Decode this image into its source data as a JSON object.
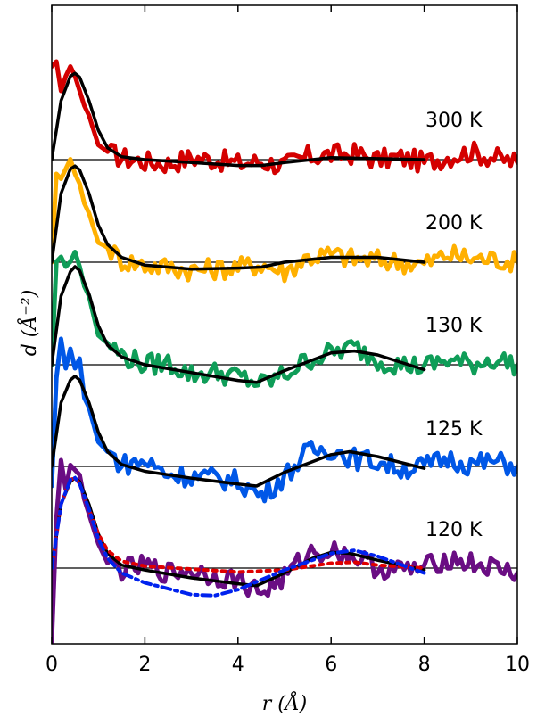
{
  "chart_data": {
    "type": "line",
    "xlabel": "r (Å)",
    "ylabel": "d (Å⁻²)",
    "xlim": [
      0,
      10
    ],
    "x_ticks": [
      "0",
      "2",
      "4",
      "6",
      "8",
      "10"
    ],
    "y_ticks_shown": false,
    "grid": false,
    "legend": "none",
    "stacked_offset_curves": true,
    "series": [
      {
        "name": "300 K",
        "color": "#d40000",
        "fit_color": "#000000",
        "data_x": [
          0.0,
          0.1,
          0.2,
          0.3,
          0.4,
          0.5,
          0.6,
          0.7,
          0.8,
          1.0,
          1.2,
          1.5,
          2.0,
          2.5,
          3.0,
          3.5,
          4.0,
          4.5,
          5.0,
          5.5,
          6.0,
          6.5,
          7.0,
          7.5,
          8.0,
          8.5,
          9.0,
          9.5,
          10.0
        ],
        "data_y": [
          0.95,
          1.0,
          0.7,
          0.85,
          0.95,
          0.85,
          0.7,
          0.55,
          0.45,
          0.15,
          0.08,
          0.02,
          -0.02,
          -0.04,
          0.02,
          0.0,
          -0.04,
          -0.02,
          -0.06,
          0.03,
          0.05,
          0.06,
          0.0,
          0.02,
          -0.03,
          0.03,
          0.08,
          0.02,
          -0.03
        ],
        "fit_x": [
          0.0,
          0.2,
          0.4,
          0.5,
          0.6,
          0.8,
          1.0,
          1.2,
          1.5,
          2.0,
          3.0,
          4.0,
          4.5,
          5.0,
          6.0,
          7.0,
          8.0
        ],
        "fit_y": [
          0.0,
          0.6,
          0.85,
          0.88,
          0.84,
          0.6,
          0.3,
          0.12,
          0.03,
          0.0,
          -0.03,
          -0.06,
          -0.06,
          -0.03,
          0.02,
          0.01,
          0.0
        ]
      },
      {
        "name": "200 K",
        "color": "#ffb000",
        "fit_color": "#000000",
        "data_x": [
          0.0,
          0.1,
          0.2,
          0.3,
          0.4,
          0.5,
          0.6,
          0.7,
          0.8,
          1.0,
          1.2,
          1.5,
          2.0,
          2.5,
          3.0,
          3.5,
          4.0,
          4.5,
          5.0,
          5.5,
          6.0,
          6.5,
          7.0,
          7.5,
          8.0,
          8.5,
          9.0,
          9.5,
          10.0
        ],
        "data_y": [
          0.0,
          0.9,
          0.85,
          0.95,
          1.05,
          0.9,
          0.8,
          0.6,
          0.5,
          0.2,
          0.15,
          0.02,
          -0.03,
          -0.05,
          -0.08,
          -0.07,
          -0.05,
          -0.02,
          -0.1,
          0.05,
          0.08,
          0.03,
          0.02,
          0.0,
          -0.02,
          0.08,
          0.04,
          0.03,
          0.0
        ],
        "fit_x": [
          0.0,
          0.2,
          0.4,
          0.5,
          0.6,
          0.8,
          1.0,
          1.2,
          1.5,
          2.0,
          3.0,
          4.0,
          4.5,
          5.0,
          6.0,
          7.0,
          8.0
        ],
        "fit_y": [
          0.0,
          0.7,
          0.95,
          0.98,
          0.94,
          0.7,
          0.38,
          0.18,
          0.05,
          -0.03,
          -0.07,
          -0.06,
          -0.05,
          0.0,
          0.05,
          0.05,
          0.0
        ]
      },
      {
        "name": "130 K",
        "color": "#0f9d58",
        "fit_color": "#000000",
        "data_x": [
          0.0,
          0.1,
          0.2,
          0.3,
          0.4,
          0.5,
          0.6,
          0.7,
          0.8,
          1.0,
          1.2,
          1.5,
          2.0,
          2.5,
          3.0,
          3.5,
          4.0,
          4.5,
          5.0,
          5.5,
          6.0,
          6.5,
          7.0,
          7.5,
          8.0,
          8.5,
          9.0,
          9.5,
          10.0
        ],
        "data_y": [
          0.0,
          1.05,
          1.1,
          1.0,
          1.05,
          1.15,
          1.0,
          0.8,
          0.7,
          0.3,
          0.22,
          0.1,
          0.0,
          0.02,
          -0.1,
          -0.08,
          -0.12,
          -0.2,
          -0.1,
          0.05,
          0.12,
          0.18,
          0.05,
          0.0,
          -0.02,
          0.05,
          0.0,
          0.06,
          0.0
        ],
        "fit_x": [
          0.0,
          0.2,
          0.4,
          0.5,
          0.6,
          0.8,
          1.0,
          1.2,
          1.5,
          2.0,
          3.0,
          4.0,
          4.4,
          5.0,
          6.0,
          6.5,
          7.0,
          8.0
        ],
        "fit_y": [
          0.0,
          0.7,
          0.95,
          1.0,
          0.96,
          0.72,
          0.4,
          0.2,
          0.08,
          0.0,
          -0.08,
          -0.16,
          -0.18,
          -0.06,
          0.12,
          0.14,
          0.1,
          -0.05
        ]
      },
      {
        "name": "125 K",
        "color": "#0057e7",
        "fit_color": "#000000",
        "data_x": [
          0.0,
          0.1,
          0.2,
          0.3,
          0.4,
          0.5,
          0.6,
          0.7,
          0.8,
          1.0,
          1.2,
          1.5,
          2.0,
          2.5,
          3.0,
          3.5,
          4.0,
          4.5,
          5.0,
          5.5,
          6.0,
          6.5,
          7.0,
          7.5,
          8.0,
          8.5,
          9.0,
          9.5,
          10.0
        ],
        "data_y": [
          -0.2,
          0.9,
          1.3,
          1.0,
          1.2,
          1.0,
          1.1,
          0.7,
          0.6,
          0.25,
          0.15,
          0.02,
          0.05,
          -0.08,
          -0.1,
          -0.12,
          -0.15,
          -0.3,
          -0.1,
          0.15,
          0.18,
          0.08,
          0.05,
          -0.02,
          0.0,
          0.08,
          0.02,
          0.05,
          0.0
        ],
        "fit_x": [
          0.0,
          0.2,
          0.4,
          0.5,
          0.6,
          0.8,
          1.0,
          1.2,
          1.5,
          2.0,
          3.0,
          4.0,
          4.4,
          5.0,
          6.0,
          6.4,
          7.0,
          8.0
        ],
        "fit_y": [
          0.0,
          0.65,
          0.88,
          0.92,
          0.88,
          0.65,
          0.35,
          0.15,
          0.02,
          -0.05,
          -0.12,
          -0.18,
          -0.2,
          -0.06,
          0.12,
          0.15,
          0.1,
          -0.02
        ]
      },
      {
        "name": "120 K",
        "color": "#6a0d83",
        "fit_color": "#000000",
        "data_x": [
          0.0,
          0.1,
          0.2,
          0.3,
          0.4,
          0.5,
          0.6,
          0.7,
          0.8,
          1.0,
          1.2,
          1.5,
          2.0,
          2.5,
          3.0,
          3.5,
          4.0,
          4.5,
          5.0,
          5.5,
          6.0,
          6.5,
          7.0,
          7.5,
          8.0,
          8.5,
          9.0,
          9.5,
          10.0
        ],
        "data_y": [
          -0.75,
          0.5,
          1.1,
          0.8,
          1.05,
          1.0,
          0.95,
          0.7,
          0.55,
          0.25,
          0.05,
          -0.02,
          0.02,
          -0.05,
          -0.02,
          -0.08,
          -0.12,
          -0.25,
          -0.1,
          0.15,
          0.18,
          0.12,
          0.0,
          -0.02,
          0.0,
          0.1,
          0.05,
          0.0,
          -0.05
        ],
        "fit_x": [
          0.0,
          0.2,
          0.4,
          0.5,
          0.6,
          0.8,
          1.0,
          1.2,
          1.5,
          2.0,
          3.0,
          4.0,
          4.4,
          5.0,
          5.6,
          6.0,
          6.4,
          7.0,
          8.0
        ],
        "fit_y": [
          0.0,
          0.65,
          0.88,
          0.92,
          0.88,
          0.65,
          0.35,
          0.15,
          0.03,
          -0.02,
          -0.1,
          -0.16,
          -0.18,
          -0.05,
          0.1,
          0.16,
          0.15,
          0.08,
          -0.02
        ],
        "extra_curves": [
          {
            "color": "#e00000",
            "style": "dotted",
            "x": [
              0.0,
              0.2,
              0.4,
              0.5,
              0.6,
              0.8,
              1.0,
              1.2,
              1.5,
              2.0,
              3.0,
              4.0,
              5.0,
              6.0,
              6.5,
              7.0,
              8.0
            ],
            "y": [
              0.0,
              0.65,
              0.9,
              0.92,
              0.86,
              0.6,
              0.35,
              0.18,
              0.07,
              0.02,
              -0.01,
              -0.04,
              -0.02,
              0.05,
              0.06,
              0.03,
              0.0
            ]
          },
          {
            "color": "#0022ee",
            "style": "dashdot",
            "x": [
              0.0,
              0.2,
              0.4,
              0.5,
              0.6,
              0.8,
              1.0,
              1.2,
              1.5,
              2.0,
              3.0,
              3.5,
              4.0,
              5.0,
              6.0,
              6.5,
              7.0,
              8.0
            ],
            "y": [
              0.0,
              0.65,
              0.9,
              0.92,
              0.86,
              0.6,
              0.3,
              0.1,
              -0.05,
              -0.15,
              -0.27,
              -0.28,
              -0.22,
              -0.02,
              0.15,
              0.18,
              0.12,
              -0.05
            ]
          }
        ]
      }
    ],
    "temperature_labels": [
      "300 K",
      "200 K",
      "130 K",
      "125 K",
      "120 K"
    ]
  }
}
